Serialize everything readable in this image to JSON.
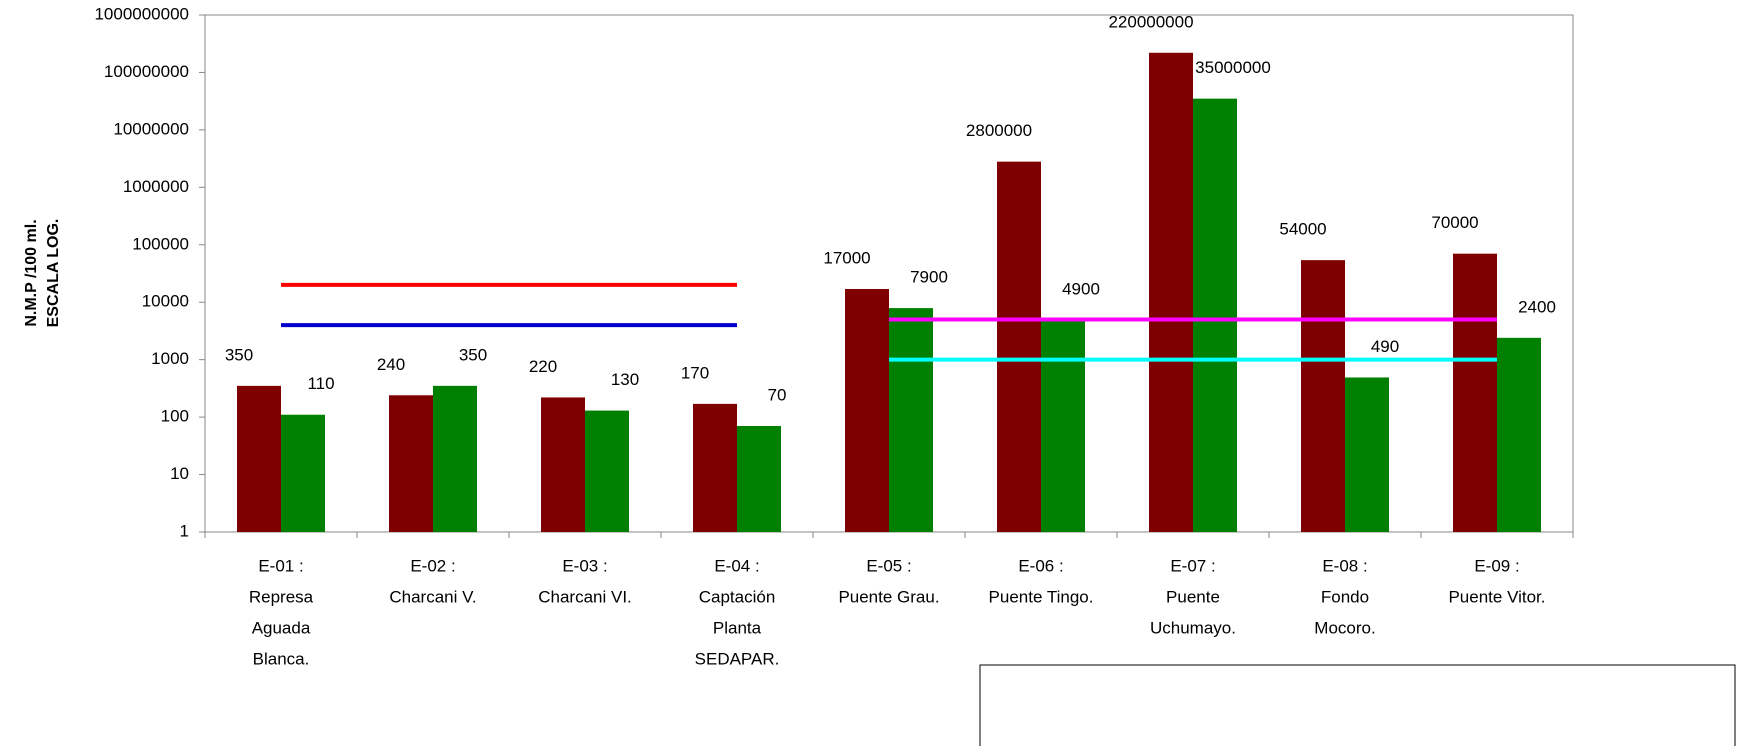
{
  "chart_data": {
    "type": "bar",
    "log_scale": true,
    "ylabel": [
      "N.M.P /100 ml.",
      "ESCALA LOG."
    ],
    "categories": [
      [
        "E-01 :",
        "Represa",
        "Aguada",
        "Blanca."
      ],
      [
        "E-02 :",
        "Charcani V."
      ],
      [
        "E-03 :",
        "Charcani VI."
      ],
      [
        "E-04 :",
        "Captación",
        "Planta",
        "SEDAPAR."
      ],
      [
        "E-05 :",
        "Puente Grau."
      ],
      [
        "E-06 :",
        "Puente Tingo."
      ],
      [
        "E-07 :",
        "Puente",
        "Uchumayo."
      ],
      [
        "E-08 :",
        "Fondo",
        "Mocoro."
      ],
      [
        "E-09 :",
        "Puente Vitor."
      ]
    ],
    "series": [
      {
        "color": "#7f0000",
        "values": [
          350,
          240,
          220,
          170,
          17000,
          2800000,
          220000000,
          54000,
          70000
        ]
      },
      {
        "color": "#008000",
        "values": [
          110,
          350,
          130,
          70,
          7900,
          4900,
          35000000,
          490,
          2400
        ]
      }
    ],
    "lines": [
      {
        "color": "#ff0000",
        "values": [
          20000,
          20000,
          20000,
          20000,
          null,
          null,
          null,
          null,
          null
        ]
      },
      {
        "color": "#0000cc",
        "values": [
          4000,
          4000,
          4000,
          4000,
          null,
          null,
          null,
          null,
          null
        ]
      },
      {
        "color": "#ff00ff",
        "values": [
          null,
          null,
          null,
          null,
          5000,
          5000,
          5000,
          5000,
          5000
        ]
      },
      {
        "color": "#00ffff",
        "values": [
          null,
          null,
          null,
          null,
          1000,
          1000,
          1000,
          1000,
          1000
        ]
      }
    ],
    "ylim": [
      1,
      1000000000
    ],
    "yticks": [
      1,
      10,
      100,
      1000,
      10000,
      100000,
      1000000,
      10000000,
      100000000,
      1000000000
    ]
  }
}
